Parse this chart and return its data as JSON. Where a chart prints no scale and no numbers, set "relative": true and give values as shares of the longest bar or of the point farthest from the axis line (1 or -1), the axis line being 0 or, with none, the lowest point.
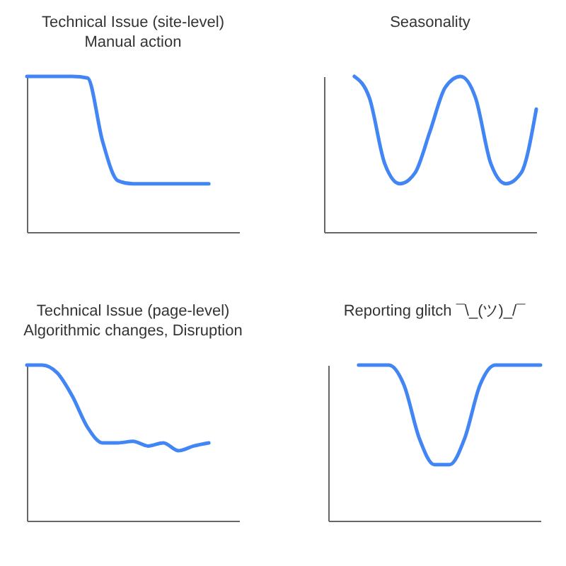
{
  "chart_data": [
    {
      "type": "line",
      "title": "Technical Issue (site-level)",
      "subtitle": "Manual action",
      "relative": true,
      "legend": false,
      "marker": "none",
      "line_style": "solid",
      "categories": [
        null,
        null,
        null,
        null,
        null,
        null,
        null,
        null,
        null,
        null,
        null,
        null,
        null,
        null,
        null
      ],
      "series": [
        {
          "color": "#4285f4",
          "values": [
            1,
            1,
            1,
            1,
            0.99,
            0.58,
            0.33,
            0.31,
            0.31,
            0.31,
            0.31,
            0.31,
            0.31,
            null,
            null
          ]
        }
      ]
    },
    {
      "type": "line",
      "title": "Seasonality",
      "relative": true,
      "legend": false,
      "marker": "none",
      "line_style": "solid",
      "categories": [
        null,
        null,
        null,
        null,
        null,
        null,
        null,
        null,
        null,
        null,
        null,
        null,
        null,
        null,
        null
      ],
      "series": [
        {
          "color": "#4285f4",
          "values": [
            null,
            null,
            1,
            0.86,
            0.44,
            0.31,
            0.38,
            0.65,
            0.93,
            1,
            0.86,
            0.44,
            0.31,
            0.38,
            0.79
          ]
        }
      ]
    },
    {
      "type": "line",
      "title": "Technical Issue (page-level)",
      "subtitle": "Algorithmic changes, Disruption",
      "relative": true,
      "legend": false,
      "marker": "none",
      "line_style": "solid",
      "categories": [
        null,
        null,
        null,
        null,
        null,
        null,
        null,
        null,
        null,
        null,
        null,
        null,
        null,
        null,
        null
      ],
      "series": [
        {
          "color": "#4285f4",
          "values": [
            1,
            1,
            0.95,
            0.8,
            0.6,
            0.5,
            0.5,
            0.51,
            0.48,
            0.5,
            0.45,
            0.48,
            0.5,
            null,
            null
          ]
        }
      ]
    },
    {
      "type": "line",
      "title": "Reporting glitch ¯\\_(ツ)_/¯",
      "relative": true,
      "legend": false,
      "marker": "none",
      "line_style": "solid",
      "categories": [
        null,
        null,
        null,
        null,
        null,
        null,
        null,
        null,
        null,
        null,
        null,
        null,
        null,
        null,
        null
      ],
      "series": [
        {
          "color": "#4285f4",
          "values": [
            null,
            null,
            1,
            1,
            1,
            0.87,
            0.53,
            0.36,
            0.36,
            0.53,
            0.87,
            1,
            1,
            1,
            1
          ]
        }
      ]
    }
  ]
}
